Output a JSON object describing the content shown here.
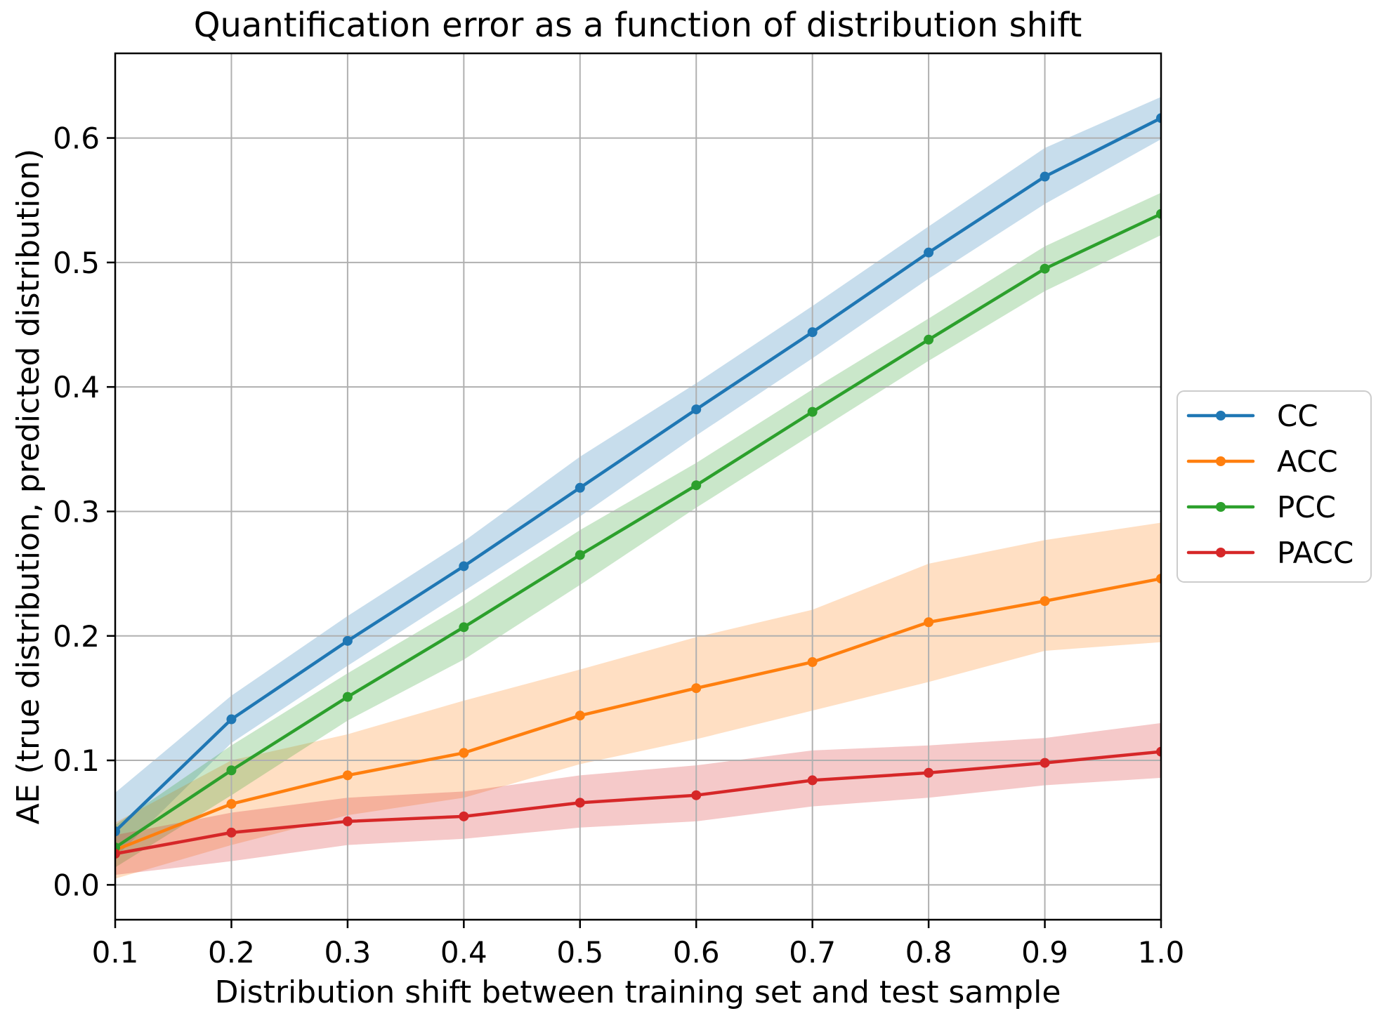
{
  "chart_data": {
    "type": "line",
    "title": "Quantification error as a function of distribution shift",
    "xlabel": "Distribution shift between training set and test sample",
    "ylabel": "AE (true distribution, predicted distribution)",
    "x": [
      0.1,
      0.2,
      0.3,
      0.4,
      0.5,
      0.6,
      0.7,
      0.8,
      0.9,
      1.0
    ],
    "x_tick_labels": [
      "0.1",
      "0.2",
      "0.3",
      "0.4",
      "0.5",
      "0.6",
      "0.7",
      "0.8",
      "0.9",
      "1.0"
    ],
    "y_ticks": [
      0.0,
      0.1,
      0.2,
      0.3,
      0.4,
      0.5,
      0.6
    ],
    "y_tick_labels": [
      "0.0",
      "0.1",
      "0.2",
      "0.3",
      "0.4",
      "0.5",
      "0.6"
    ],
    "xlim": [
      0.1,
      1.0
    ],
    "ylim": [
      -0.028,
      0.668
    ],
    "grid": true,
    "grid_color": "#b0b0b0",
    "legend_position": "right-outside",
    "legend_border_color": "#cccccc",
    "band_style": "shaded-confidence-band",
    "series": [
      {
        "name": "CC",
        "color": "#1f77b4",
        "values": [
          0.043,
          0.133,
          0.196,
          0.256,
          0.319,
          0.382,
          0.444,
          0.508,
          0.569,
          0.616
        ],
        "lower": [
          0.022,
          0.114,
          0.176,
          0.236,
          0.296,
          0.361,
          0.423,
          0.487,
          0.547,
          0.599
        ],
        "upper": [
          0.074,
          0.152,
          0.216,
          0.276,
          0.344,
          0.403,
          0.465,
          0.529,
          0.592,
          0.633
        ]
      },
      {
        "name": "ACC",
        "color": "#ff7f0e",
        "values": [
          0.028,
          0.065,
          0.088,
          0.106,
          0.136,
          0.158,
          0.179,
          0.211,
          0.228,
          0.246
        ],
        "lower": [
          0.005,
          0.032,
          0.056,
          0.07,
          0.097,
          0.117,
          0.14,
          0.163,
          0.188,
          0.195
        ],
        "upper": [
          0.05,
          0.1,
          0.121,
          0.148,
          0.173,
          0.199,
          0.221,
          0.258,
          0.277,
          0.291
        ]
      },
      {
        "name": "PCC",
        "color": "#2ca02c",
        "values": [
          0.03,
          0.092,
          0.151,
          0.207,
          0.265,
          0.321,
          0.38,
          0.438,
          0.495,
          0.539
        ],
        "lower": [
          0.014,
          0.072,
          0.132,
          0.181,
          0.241,
          0.303,
          0.362,
          0.421,
          0.477,
          0.522
        ],
        "upper": [
          0.048,
          0.112,
          0.17,
          0.225,
          0.285,
          0.339,
          0.398,
          0.455,
          0.513,
          0.556
        ]
      },
      {
        "name": "PACC",
        "color": "#d62728",
        "values": [
          0.025,
          0.042,
          0.051,
          0.055,
          0.066,
          0.072,
          0.084,
          0.09,
          0.098,
          0.107
        ],
        "lower": [
          0.008,
          0.019,
          0.032,
          0.037,
          0.046,
          0.051,
          0.063,
          0.07,
          0.08,
          0.086
        ],
        "upper": [
          0.04,
          0.058,
          0.07,
          0.075,
          0.088,
          0.096,
          0.108,
          0.112,
          0.118,
          0.13
        ]
      }
    ]
  }
}
